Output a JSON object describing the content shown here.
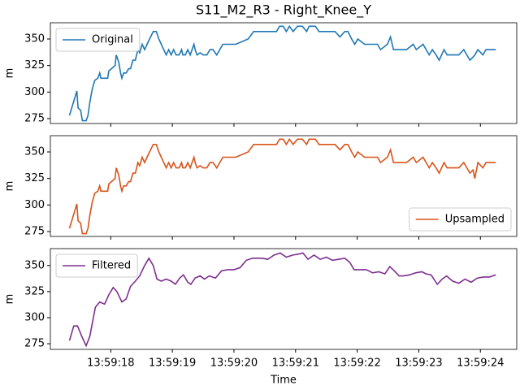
{
  "chart_data": [
    {
      "type": "line",
      "title": "S11_M2_R3 - Right_Knee_Y",
      "ylabel": "m",
      "legend": "upper left",
      "ylim": [
        270.4,
        365.3
      ],
      "yticks": [
        275,
        300,
        325,
        350
      ],
      "x": [
        17.33,
        17.45,
        17.47,
        17.51,
        17.54,
        17.6,
        17.63,
        17.66,
        17.7,
        17.74,
        17.79,
        17.82,
        17.84,
        17.95,
        17.97,
        18.01,
        18.07,
        18.09,
        18.13,
        18.16,
        18.18,
        18.21,
        18.25,
        18.29,
        18.32,
        18.36,
        18.4,
        18.44,
        18.47,
        18.51,
        18.55,
        18.59,
        18.63,
        18.69,
        18.74,
        18.78,
        18.82,
        18.86,
        18.9,
        18.94,
        18.98,
        19.02,
        19.06,
        19.11,
        19.15,
        19.17,
        19.21,
        19.25,
        19.29,
        19.35,
        19.37,
        19.4,
        19.45,
        19.5,
        19.56,
        19.61,
        19.66,
        19.72,
        19.77,
        19.82,
        20.03,
        20.23,
        20.32,
        20.69,
        20.74,
        20.8,
        20.85,
        20.9,
        20.96,
        21.03,
        21.11,
        21.18,
        21.22,
        21.32,
        21.38,
        21.64,
        21.72,
        21.8,
        21.85,
        21.91,
        21.96,
        22.01,
        22.12,
        22.33,
        22.38,
        22.49,
        22.54,
        22.59,
        22.8,
        22.91,
        22.96,
        23.07,
        23.12,
        23.17,
        23.22,
        23.28,
        23.33,
        23.41,
        23.46,
        23.65,
        23.73,
        23.78,
        23.83,
        23.88,
        23.91,
        23.96,
        24.04,
        24.09,
        24.25
      ],
      "series": [
        {
          "name": "Original",
          "color": "#1f77b4",
          "values": [
            278,
            301,
            285,
            283,
            273,
            273,
            278,
            290,
            303,
            311,
            313,
            318,
            313,
            313,
            320,
            322,
            325,
            335,
            328,
            318,
            313,
            318,
            318,
            322,
            322,
            330,
            330,
            340,
            337,
            345,
            340,
            345,
            350,
            357,
            357,
            350,
            345,
            340,
            335,
            340,
            335,
            340,
            335,
            335,
            340,
            335,
            335,
            340,
            335,
            345,
            340,
            335,
            337,
            335,
            335,
            340,
            340,
            335,
            340,
            345,
            345,
            350,
            357,
            357,
            362,
            362,
            357,
            362,
            357,
            362,
            362,
            357,
            362,
            362,
            357,
            357,
            352,
            357,
            357,
            350,
            345,
            350,
            345,
            345,
            340,
            345,
            352,
            340,
            340,
            345,
            340,
            345,
            340,
            335,
            340,
            335,
            330,
            340,
            335,
            335,
            340,
            335,
            330,
            333,
            335,
            340,
            335,
            340,
            340
          ]
        }
      ]
    },
    {
      "type": "line",
      "ylabel": "m",
      "legend": "lower right",
      "ylim": [
        270.4,
        365.3
      ],
      "yticks": [
        275,
        300,
        325,
        350
      ],
      "x": [
        17.33,
        17.45,
        17.47,
        17.51,
        17.54,
        17.6,
        17.63,
        17.66,
        17.7,
        17.74,
        17.79,
        17.82,
        17.84,
        17.95,
        17.97,
        18.01,
        18.07,
        18.09,
        18.13,
        18.16,
        18.18,
        18.21,
        18.25,
        18.29,
        18.32,
        18.36,
        18.4,
        18.44,
        18.47,
        18.51,
        18.55,
        18.59,
        18.63,
        18.69,
        18.74,
        18.78,
        18.82,
        18.86,
        18.9,
        18.94,
        18.98,
        19.02,
        19.06,
        19.11,
        19.15,
        19.17,
        19.21,
        19.25,
        19.29,
        19.35,
        19.37,
        19.4,
        19.45,
        19.5,
        19.56,
        19.61,
        19.66,
        19.72,
        19.77,
        19.82,
        20.03,
        20.23,
        20.32,
        20.69,
        20.74,
        20.8,
        20.85,
        20.9,
        20.96,
        21.03,
        21.11,
        21.18,
        21.22,
        21.32,
        21.38,
        21.64,
        21.72,
        21.8,
        21.85,
        21.91,
        21.96,
        22.01,
        22.12,
        22.33,
        22.38,
        22.49,
        22.54,
        22.59,
        22.8,
        22.91,
        22.96,
        23.07,
        23.12,
        23.17,
        23.22,
        23.28,
        23.33,
        23.41,
        23.46,
        23.65,
        23.73,
        23.78,
        23.83,
        23.88,
        23.91,
        23.96,
        24.04,
        24.09,
        24.25
      ],
      "series": [
        {
          "name": "Upsampled",
          "color": "#d95319",
          "values": [
            278,
            301,
            285,
            283,
            273,
            273,
            278,
            290,
            303,
            311,
            313,
            318,
            313,
            313,
            320,
            322,
            325,
            335,
            328,
            318,
            313,
            318,
            318,
            322,
            322,
            330,
            330,
            340,
            337,
            345,
            340,
            345,
            350,
            357,
            357,
            350,
            345,
            340,
            335,
            340,
            335,
            340,
            335,
            335,
            340,
            335,
            335,
            340,
            335,
            345,
            340,
            335,
            337,
            335,
            335,
            340,
            340,
            335,
            340,
            345,
            345,
            350,
            357,
            357,
            362,
            362,
            357,
            362,
            357,
            362,
            362,
            357,
            362,
            362,
            357,
            357,
            352,
            357,
            357,
            350,
            345,
            350,
            345,
            345,
            340,
            345,
            352,
            340,
            340,
            345,
            340,
            345,
            340,
            335,
            340,
            335,
            330,
            340,
            335,
            335,
            340,
            335,
            330,
            333,
            325,
            340,
            335,
            340,
            340
          ]
        }
      ]
    },
    {
      "type": "line",
      "ylabel": "m",
      "xlabel": "Time",
      "legend": "upper left",
      "ylim": [
        269.6,
        366.2
      ],
      "yticks": [
        275,
        300,
        325,
        350
      ],
      "xlim": [
        17.02,
        24.59
      ],
      "xticks": [
        {
          "value": 18,
          "label": "13:59:18"
        },
        {
          "value": 19,
          "label": "13:59:19"
        },
        {
          "value": 20,
          "label": "13:59:20"
        },
        {
          "value": 21,
          "label": "13:59:21"
        },
        {
          "value": 22,
          "label": "13:59:22"
        },
        {
          "value": 23,
          "label": "13:59:23"
        },
        {
          "value": 24,
          "label": "13:59:24"
        }
      ],
      "x": [
        17.33,
        17.4,
        17.46,
        17.53,
        17.6,
        17.66,
        17.75,
        17.82,
        17.9,
        17.97,
        18.04,
        18.1,
        18.18,
        18.25,
        18.32,
        18.4,
        18.47,
        18.55,
        18.62,
        18.69,
        18.75,
        18.82,
        18.9,
        18.98,
        19.05,
        19.12,
        19.18,
        19.25,
        19.3,
        19.37,
        19.45,
        19.52,
        19.6,
        19.7,
        19.8,
        19.9,
        20.0,
        20.1,
        20.2,
        20.3,
        20.45,
        20.55,
        20.65,
        20.75,
        20.85,
        20.95,
        21.05,
        21.12,
        21.2,
        21.3,
        21.4,
        21.5,
        21.6,
        21.7,
        21.8,
        21.88,
        21.95,
        22.05,
        22.15,
        22.25,
        22.35,
        22.45,
        22.53,
        22.6,
        22.68,
        22.75,
        22.85,
        22.95,
        23.05,
        23.12,
        23.2,
        23.3,
        23.38,
        23.45,
        23.55,
        23.65,
        23.75,
        23.85,
        23.95,
        24.05,
        24.15,
        24.25
      ],
      "series": [
        {
          "name": "Filtered",
          "color": "#7e2f8e",
          "values": [
            278,
            292,
            292,
            282,
            273,
            282,
            310,
            315,
            313,
            322,
            329,
            325,
            315,
            318,
            330,
            335,
            340,
            350,
            357,
            350,
            337,
            335,
            337,
            335,
            332,
            338,
            341,
            334,
            332,
            338,
            340,
            337,
            340,
            338,
            345,
            346,
            346,
            348,
            355,
            357,
            357,
            356,
            360,
            362,
            358,
            360,
            361,
            362,
            356,
            360,
            356,
            358,
            355,
            356,
            357,
            353,
            346,
            346,
            346,
            343,
            344,
            342,
            349,
            345,
            340,
            340,
            341,
            343,
            344,
            342,
            341,
            332,
            337,
            340,
            335,
            333,
            337,
            334,
            338,
            339,
            339,
            341
          ]
        }
      ]
    }
  ]
}
